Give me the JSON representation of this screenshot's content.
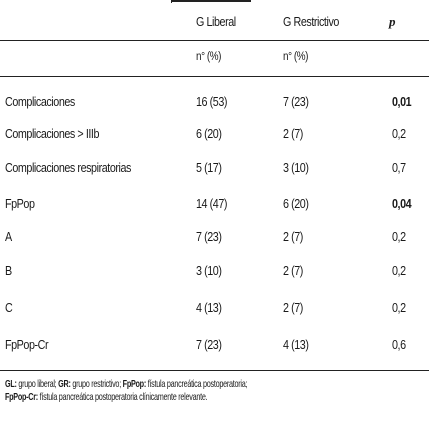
{
  "table": {
    "headers": {
      "col1": "G Liberal",
      "col2": "G Restrictivo",
      "col3": "p",
      "sub1": "n° (%)",
      "sub2": "n° (%)"
    },
    "rows": [
      {
        "label": "Complicaciones",
        "liberal": "16 (53)",
        "restrictivo": "7 (23)",
        "p": "0,01",
        "bold": true
      },
      {
        "label": "Complicaciones > IIIb",
        "liberal": "6 (20)",
        "restrictivo": "2 (7)",
        "p": "0,2",
        "bold": false
      },
      {
        "label": "Complicaciones respiratorias",
        "liberal": "5 (17)",
        "restrictivo": "3 (10)",
        "p": "0,7",
        "bold": false
      },
      {
        "label": "FpPop",
        "liberal": "14 (47)",
        "restrictivo": "6 (20)",
        "p": "0,04",
        "bold": true
      },
      {
        "label": "A",
        "liberal": "7 (23)",
        "restrictivo": "2 (7)",
        "p": "0,2",
        "bold": false
      },
      {
        "label": "B",
        "liberal": "3 (10)",
        "restrictivo": "2 (7)",
        "p": "0,2",
        "bold": false
      },
      {
        "label": "C",
        "liberal": "4 (13)",
        "restrictivo": "2 (7)",
        "p": "0,2",
        "bold": false
      },
      {
        "label": "FpPop-Cr",
        "liberal": "7 (23)",
        "restrictivo": "4 (13)",
        "p": "0,6",
        "bold": false
      }
    ]
  },
  "footnote": {
    "line1": [
      {
        "b": "GL:",
        "t": " grupo liberal; "
      },
      {
        "b": "GR:",
        "t": " grupo restrictivo; "
      },
      {
        "b": "FpPop:",
        "t": " fístula pancreática postoperatoria;"
      }
    ],
    "line2": [
      {
        "b": "FpPop-Cr:",
        "t": " fístula pancreática postoperatoria clínicamente relevante."
      }
    ]
  }
}
